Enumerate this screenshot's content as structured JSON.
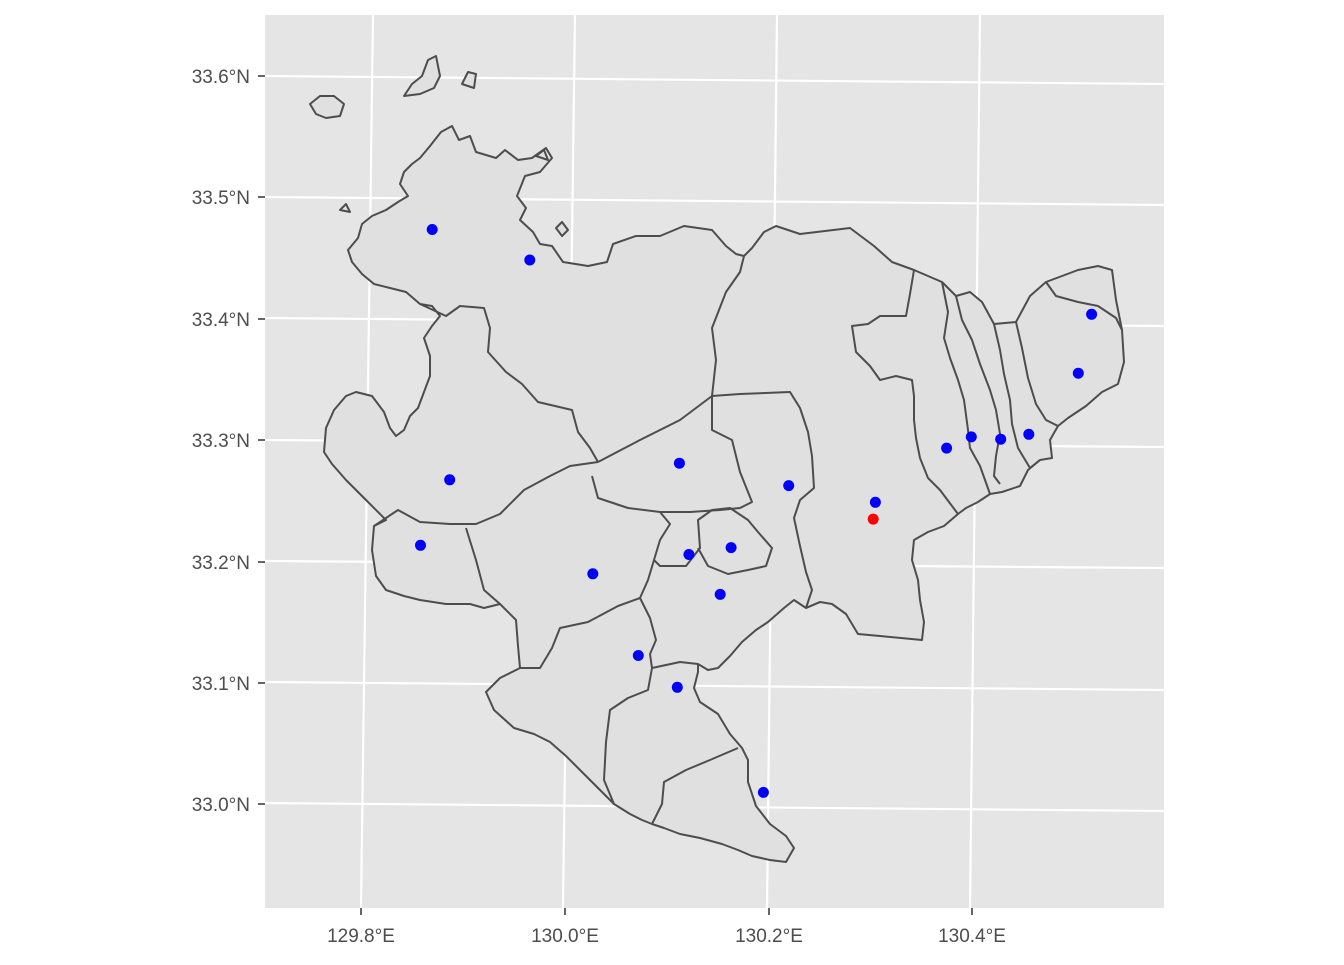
{
  "chart_data": {
    "type": "scatter",
    "title": "",
    "xlabel": "",
    "ylabel": "",
    "xlim": [
      129.71,
      130.58
    ],
    "ylim": [
      32.91,
      33.65
    ],
    "grid": true,
    "legend": "none",
    "x_ticks": [
      {
        "value": 129.8,
        "label": "129.8°E"
      },
      {
        "value": 130.0,
        "label": "130.0°E"
      },
      {
        "value": 130.2,
        "label": "130.2°E"
      },
      {
        "value": 130.4,
        "label": "130.4°E"
      }
    ],
    "y_ticks": [
      {
        "value": 33.0,
        "label": "33.0°N"
      },
      {
        "value": 33.1,
        "label": "33.1°N"
      },
      {
        "value": 33.2,
        "label": "33.2°N"
      },
      {
        "value": 33.3,
        "label": "33.3°N"
      },
      {
        "value": 33.4,
        "label": "33.4°N"
      },
      {
        "value": 33.5,
        "label": "33.5°N"
      },
      {
        "value": 33.6,
        "label": "33.6°N"
      }
    ],
    "series": [
      {
        "color": "#0000ff",
        "points": [
          {
            "lon": 129.88,
            "lat": 33.47
          },
          {
            "lon": 129.975,
            "lat": 33.448
          },
          {
            "lon": 130.528,
            "lat": 33.421
          },
          {
            "lon": 130.512,
            "lat": 33.372
          },
          {
            "lon": 130.46,
            "lat": 33.32
          },
          {
            "lon": 130.432,
            "lat": 33.315
          },
          {
            "lon": 130.403,
            "lat": 33.316
          },
          {
            "lon": 130.378,
            "lat": 33.306
          },
          {
            "lon": 130.305,
            "lat": 33.259
          },
          {
            "lon": 130.22,
            "lat": 33.27
          },
          {
            "lon": 130.113,
            "lat": 33.285
          },
          {
            "lon": 129.885,
            "lat": 33.264
          },
          {
            "lon": 129.853,
            "lat": 33.209
          },
          {
            "lon": 130.022,
            "lat": 33.191
          },
          {
            "lon": 130.118,
            "lat": 33.21
          },
          {
            "lon": 130.16,
            "lat": 33.217
          },
          {
            "lon": 130.147,
            "lat": 33.178
          },
          {
            "lon": 130.063,
            "lat": 33.125
          },
          {
            "lon": 130.1,
            "lat": 33.1
          },
          {
            "lon": 130.18,
            "lat": 33.016
          }
        ]
      },
      {
        "color": "#ff0000",
        "points": [
          {
            "lon": 130.302,
            "lat": 33.245
          }
        ]
      }
    ]
  },
  "colors": {
    "panel_background": "#e5e5e5",
    "region_fill": "#e0e0e0",
    "region_border": "#4d4d4d",
    "grid": "#ffffff",
    "point_primary": "#0000ff",
    "point_highlight": "#ff0000"
  }
}
